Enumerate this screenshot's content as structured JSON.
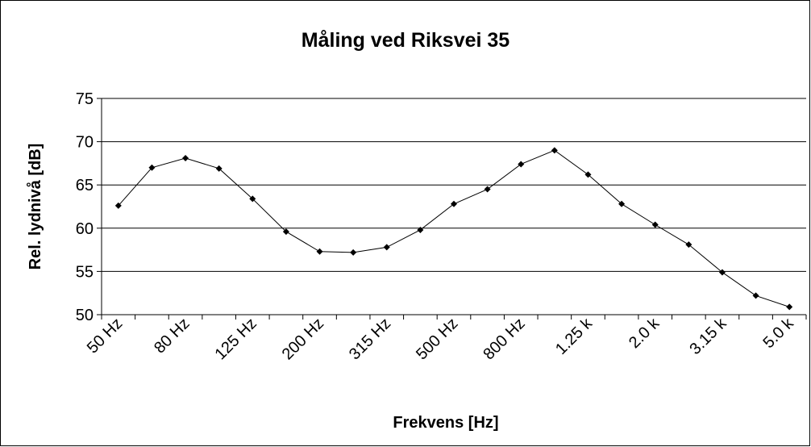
{
  "chart_data": {
    "type": "line",
    "title": "Måling ved Riksvei 35",
    "x_label": "Frekvens [Hz]",
    "y_label": "Rel. lydnivå [dB]",
    "categories": [
      "50 Hz",
      null,
      "80 Hz",
      null,
      "125 Hz",
      null,
      "200 Hz",
      null,
      "315 Hz",
      null,
      "500 Hz",
      null,
      "800 Hz",
      null,
      "1.25 k",
      null,
      "2.0 k",
      null,
      "3.15 k",
      null,
      "5.0 k"
    ],
    "series": [
      {
        "name": "Rel. lydnivå",
        "color": "#000000",
        "values": [
          62.6,
          67.0,
          68.1,
          66.9,
          63.4,
          59.6,
          57.3,
          57.2,
          57.8,
          59.8,
          62.8,
          64.5,
          67.4,
          69.0,
          66.2,
          62.8,
          60.4,
          58.1,
          54.9,
          52.2,
          50.9
        ]
      }
    ],
    "ylim": [
      50,
      75
    ],
    "yticks": [
      50,
      55,
      60,
      65,
      70,
      75
    ],
    "grid": true
  }
}
